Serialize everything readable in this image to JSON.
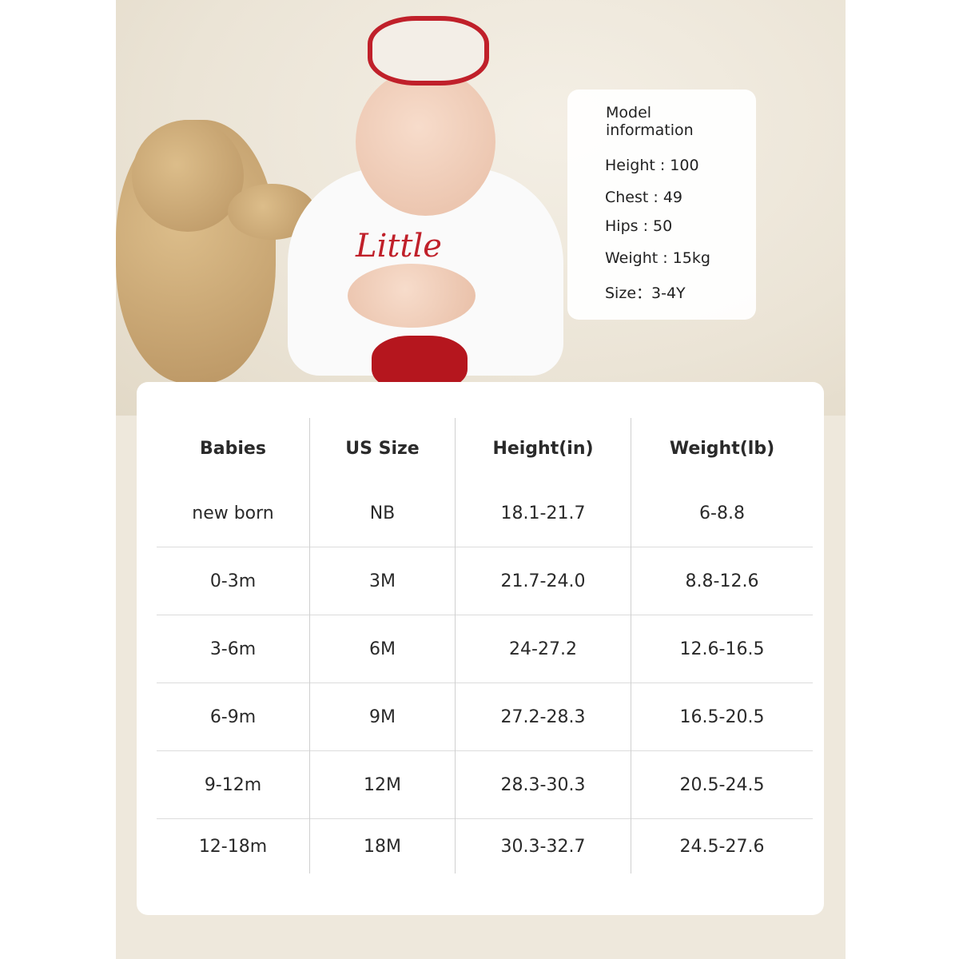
{
  "model_info": {
    "title": "Model information",
    "rows": [
      "Height : 100",
      "Chest : 49",
      "Hips : 50",
      "Weight : 15kg",
      "Size：3-4Y"
    ]
  },
  "photo": {
    "shirt_text": "Little"
  },
  "size_table": {
    "headers": [
      "Babies",
      "US Size",
      "Height(in)",
      "Weight(lb)"
    ],
    "rows": [
      [
        "new born",
        "NB",
        "18.1-21.7",
        "6-8.8"
      ],
      [
        "0-3m",
        "3M",
        "21.7-24.0",
        "8.8-12.6"
      ],
      [
        "3-6m",
        "6M",
        "24-27.2",
        "12.6-16.5"
      ],
      [
        "6-9m",
        "9M",
        "27.2-28.3",
        "16.5-20.5"
      ],
      [
        "9-12m",
        "12M",
        "28.3-30.3",
        "20.5-24.5"
      ],
      [
        "12-18m",
        "18M",
        "30.3-32.7",
        "24.5-27.6"
      ]
    ]
  }
}
